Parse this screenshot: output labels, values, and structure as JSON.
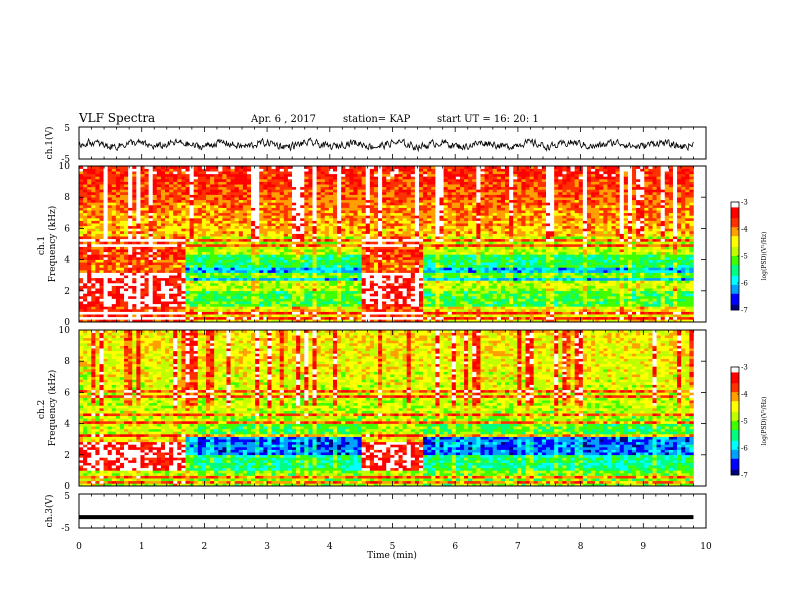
{
  "header": {
    "title": "VLF Spectra",
    "date": "Apr. 6 , 2017",
    "station": "station= KAP",
    "start": "start UT =  16: 20: 1"
  },
  "chart_data": [
    {
      "type": "line",
      "panel": "ch1-waveform",
      "ylabel": "ch.1(V)",
      "ylim": [
        -5,
        5
      ],
      "y_ticks": [
        "5",
        "-5"
      ],
      "xlim": [
        0,
        10
      ],
      "description_series": "noisy waveform around ~ -0.5 V, amplitude about ±3 V, ending near 9.8 min"
    },
    {
      "type": "heatmap",
      "panel": "ch1-spectrogram",
      "ylabel": "ch.1\nFrequency (kHz)",
      "ylabel_lines": [
        "ch.1",
        "Frequency (kHz)"
      ],
      "ylim": [
        0,
        10
      ],
      "y_ticks": [
        "0",
        "2",
        "4",
        "6",
        "8",
        "10"
      ],
      "xlim": [
        0,
        10
      ],
      "data_end_min": 9.8,
      "segments": [
        {
          "start_min": 0,
          "end_min": 1.7,
          "state": "enhanced"
        },
        {
          "start_min": 1.7,
          "end_min": 4.5,
          "state": "background"
        },
        {
          "start_min": 4.5,
          "end_min": 5.5,
          "state": "enhanced"
        },
        {
          "start_min": 5.5,
          "end_min": 9.8,
          "state": "background"
        }
      ],
      "colorbar": {
        "label": "log(PSD)(V²/Hz)",
        "range": [
          -7,
          -3
        ],
        "ticks": [
          "-3",
          "-4",
          "-5",
          "-6",
          "-7"
        ]
      }
    },
    {
      "type": "heatmap",
      "panel": "ch2-spectrogram",
      "ylabel_lines": [
        "ch.2",
        "Frequency (kHz)"
      ],
      "ylim": [
        0,
        10
      ],
      "y_ticks": [
        "0",
        "2",
        "4",
        "6",
        "8",
        "10"
      ],
      "xlim": [
        0,
        10
      ],
      "data_end_min": 9.8,
      "segments": [
        {
          "start_min": 0,
          "end_min": 1.7,
          "state": "enhanced"
        },
        {
          "start_min": 1.7,
          "end_min": 4.5,
          "state": "background"
        },
        {
          "start_min": 4.5,
          "end_min": 5.5,
          "state": "enhanced"
        },
        {
          "start_min": 5.5,
          "end_min": 9.8,
          "state": "background"
        }
      ],
      "colorbar": {
        "label": "log(PSD)(V²/Hz)",
        "range": [
          -7,
          -3
        ],
        "ticks": [
          "-3",
          "-4",
          "-5",
          "-6",
          "-7"
        ]
      }
    },
    {
      "type": "line",
      "panel": "ch3-waveform",
      "ylabel": "ch.3(V)",
      "ylim": [
        -5,
        5
      ],
      "y_ticks": [
        "5",
        "-5"
      ],
      "xlim": [
        0,
        10
      ],
      "value_constant": -1.8
    }
  ],
  "xaxis": {
    "label": "Time (min)",
    "ticks": [
      "0",
      "1",
      "2",
      "3",
      "4",
      "5",
      "6",
      "7",
      "8",
      "9",
      "10"
    ]
  },
  "colormap": [
    "#000080",
    "#0000ff",
    "#00a0ff",
    "#00ffff",
    "#00ff80",
    "#40ff00",
    "#c0ff00",
    "#ffff00",
    "#ffa000",
    "#ff3000",
    "#ff0000",
    "#ffffff"
  ]
}
